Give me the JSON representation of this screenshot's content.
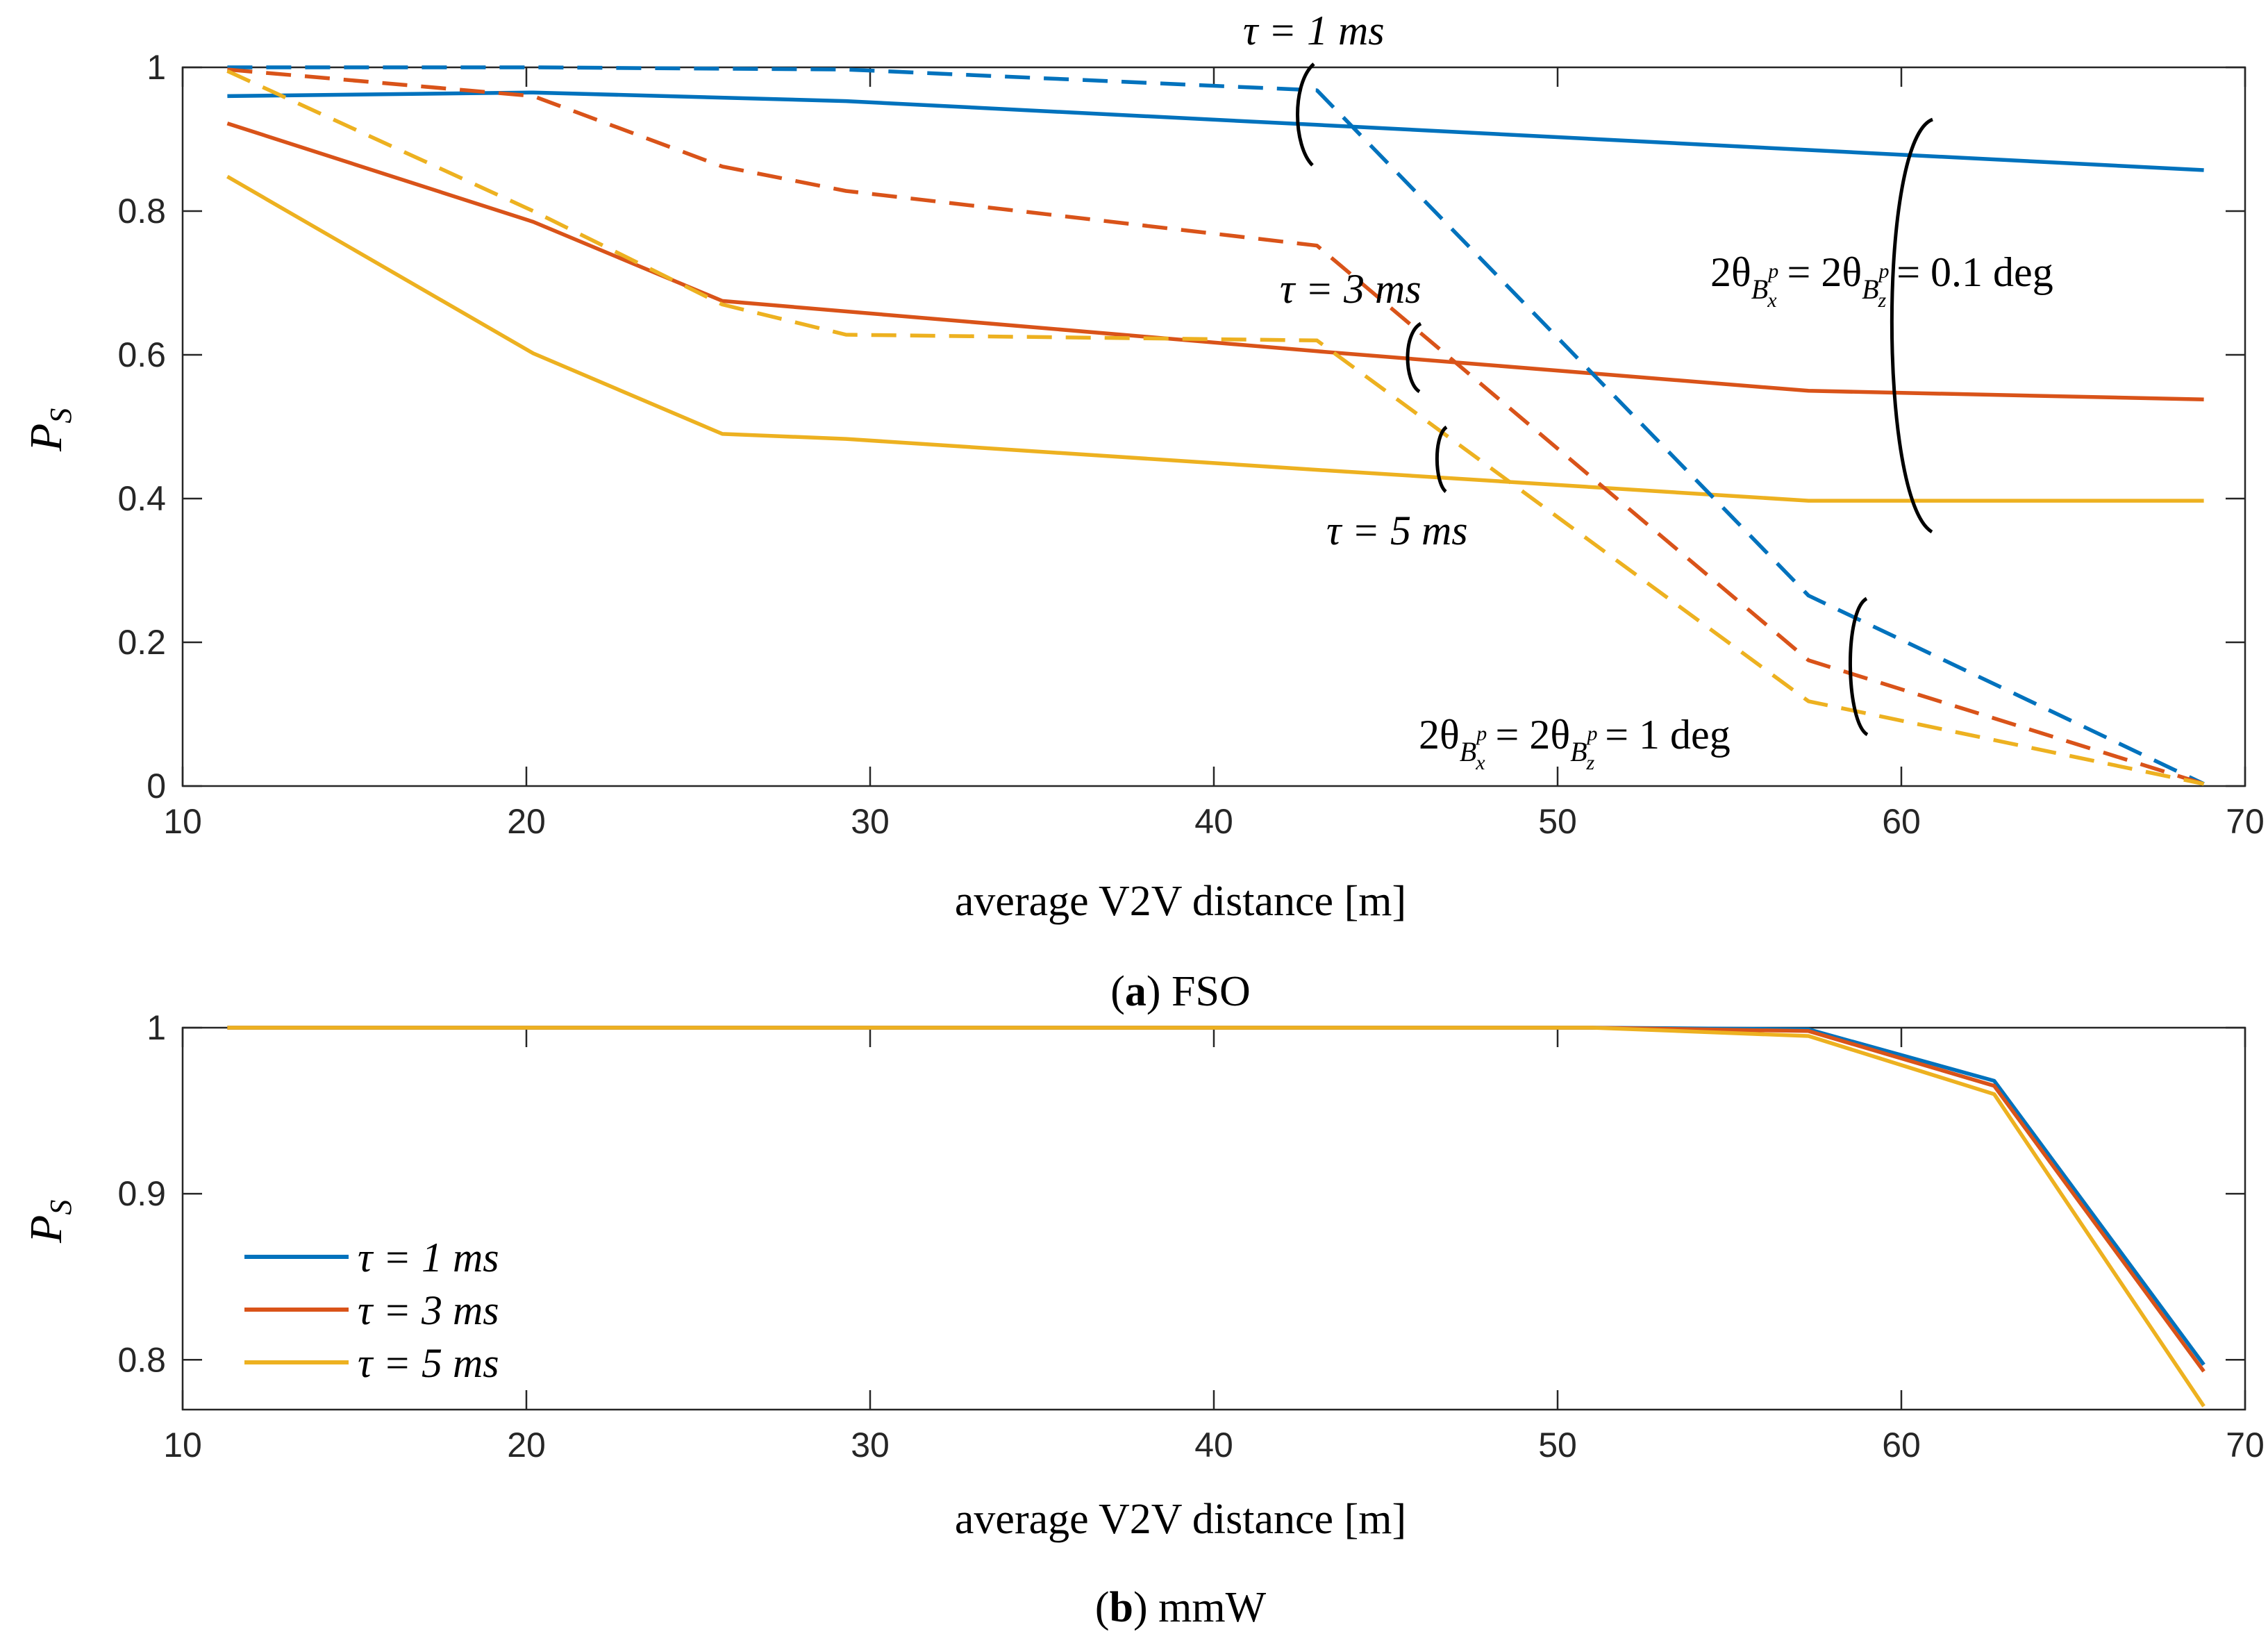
{
  "chart_data": [
    {
      "id": "a",
      "type": "line",
      "caption_letter": "a",
      "caption_text": "FSO",
      "xlabel": "average V2V distance [m]",
      "ylabel_main": "P",
      "ylabel_sub": "S",
      "xlim": [
        10,
        70
      ],
      "ylim": [
        0,
        1
      ],
      "xticks": [
        10,
        20,
        30,
        40,
        50,
        60,
        70
      ],
      "yticks": [
        0,
        0.2,
        0.4,
        0.6,
        0.8,
        1
      ],
      "ytick_labels": [
        "0",
        "0.2",
        "0.4",
        "0.6",
        "0.8",
        "1"
      ],
      "series": [
        {
          "name": "τ = 1 ms, 2θ = 0.1 deg",
          "color": "#0072BD",
          "dash": false,
          "x": [
            11.3,
            20.2,
            29.3,
            43.0,
            57.3,
            68.8
          ],
          "y": [
            0.96,
            0.965,
            0.953,
            0.92,
            0.885,
            0.857
          ]
        },
        {
          "name": "τ = 3 ms, 2θ = 0.1 deg",
          "color": "#D95319",
          "dash": false,
          "x": [
            11.3,
            20.2,
            25.7,
            43.0,
            57.3,
            68.8
          ],
          "y": [
            0.922,
            0.785,
            0.675,
            0.605,
            0.55,
            0.538
          ]
        },
        {
          "name": "τ = 5 ms, 2θ = 0.1 deg",
          "color": "#EDB120",
          "dash": false,
          "x": [
            11.3,
            20.2,
            25.7,
            29.3,
            43.0,
            57.3,
            68.8
          ],
          "y": [
            0.848,
            0.602,
            0.49,
            0.483,
            0.44,
            0.397,
            0.397
          ]
        },
        {
          "name": "τ = 1 ms, 2θ = 1 deg",
          "color": "#0072BD",
          "dash": true,
          "x": [
            11.3,
            20.2,
            29.3,
            43.0,
            57.3,
            68.8
          ],
          "y": [
            1.0,
            1.0,
            0.997,
            0.968,
            0.265,
            0.003
          ]
        },
        {
          "name": "τ = 3 ms, 2θ = 1 deg",
          "color": "#D95319",
          "dash": true,
          "x": [
            11.3,
            20.2,
            25.7,
            29.3,
            43.0,
            57.3,
            68.8
          ],
          "y": [
            0.997,
            0.96,
            0.862,
            0.828,
            0.752,
            0.175,
            0.003
          ]
        },
        {
          "name": "τ = 5 ms, 2θ = 1 deg",
          "color": "#EDB120",
          "dash": true,
          "x": [
            11.3,
            20.2,
            25.7,
            29.3,
            43.0,
            57.3,
            68.8
          ],
          "y": [
            0.995,
            0.8,
            0.67,
            0.628,
            0.62,
            0.118,
            0.003
          ]
        }
      ],
      "annotations": {
        "tau1": "τ = 1 ms",
        "tau3": "τ = 3 ms",
        "tau5": "τ = 5 ms",
        "theta01_pre": "2θ",
        "theta01_sub": "B",
        "theta01_subx": "x",
        "theta01_subz": "z",
        "theta01_sup": "p",
        "theta01_eq": " = 2θ",
        "theta01_val": " = 0.1 deg",
        "theta1_pre": "2θ",
        "theta1_sub": "B",
        "theta1_subx": "x",
        "theta1_subz": "z",
        "theta1_sup": "p",
        "theta1_eq": " = 2θ",
        "theta1_val": " = 1 deg"
      }
    },
    {
      "id": "b",
      "type": "line",
      "caption_letter": "b",
      "caption_text": "mmW",
      "xlabel": "average V2V distance [m]",
      "ylabel_main": "P",
      "ylabel_sub": "S",
      "xlim": [
        10,
        70
      ],
      "ylim": [
        0.77,
        1.0
      ],
      "xticks": [
        10,
        20,
        30,
        40,
        50,
        60,
        70
      ],
      "yticks": [
        0.8,
        0.9,
        1
      ],
      "ytick_labels": [
        "0.8",
        "0.9",
        "1"
      ],
      "legend_position": "middle-left",
      "series": [
        {
          "name": "τ = 1 ms",
          "color": "#0072BD",
          "dash": false,
          "x": [
            11.3,
            20.2,
            29.3,
            43.0,
            51.0,
            57.3,
            62.7,
            68.8
          ],
          "y": [
            1.0,
            1.0,
            1.0,
            1.0,
            1.0,
            0.999,
            0.968,
            0.797
          ]
        },
        {
          "name": "τ = 3 ms",
          "color": "#D95319",
          "dash": false,
          "x": [
            11.3,
            20.2,
            29.3,
            43.0,
            51.0,
            57.3,
            62.7,
            68.8
          ],
          "y": [
            1.0,
            1.0,
            1.0,
            1.0,
            1.0,
            0.998,
            0.965,
            0.793
          ]
        },
        {
          "name": "τ = 5 ms",
          "color": "#EDB120",
          "dash": false,
          "x": [
            11.3,
            20.2,
            29.3,
            43.0,
            51.0,
            57.3,
            62.7,
            68.8
          ],
          "y": [
            1.0,
            1.0,
            1.0,
            1.0,
            1.0,
            0.995,
            0.96,
            0.772
          ]
        }
      ]
    }
  ]
}
